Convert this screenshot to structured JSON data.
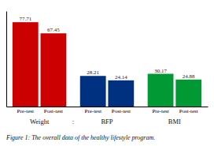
{
  "chart_data": {
    "type": "bar",
    "categories": [
      "Pre-test",
      "Post-test"
    ],
    "series": [
      {
        "name": "Weight",
        "color": "#cc0000",
        "values": [
          77.71,
          67.45
        ]
      },
      {
        "name": "BFP",
        "color": "#003080",
        "values": [
          28.21,
          24.14
        ]
      },
      {
        "name": "BMI",
        "color": "#009933",
        "values": [
          30.17,
          24.88
        ]
      }
    ],
    "ylim": [
      0,
      88
    ],
    "data_labels": true,
    "tick_labels": "x",
    "grid": false,
    "annotations": [
      ":"
    ],
    "caption": "Figure 1: The overall data of the healthy lifestyle program."
  }
}
